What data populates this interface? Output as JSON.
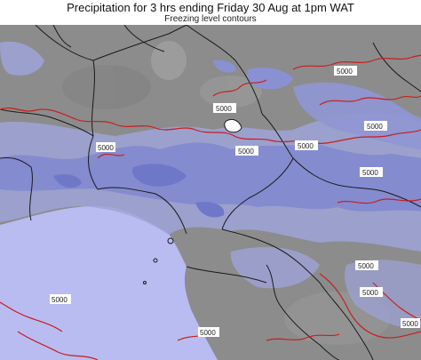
{
  "header": {
    "title": "Precipitation for 3 hrs ending Friday 30 Aug at 1pm WAT",
    "subtitle": "Freezing level contours"
  },
  "colors": {
    "land": "#8a8a8a",
    "ocean": "#b9bcf1",
    "precip_light": "#9ea3d8",
    "precip_heavy": "#6f78c8",
    "contour": "#c81e1e",
    "border": "#1a1a1a"
  },
  "contour_labels": [
    "5000",
    "5000",
    "5000",
    "5000",
    "5000",
    "5000",
    "5000",
    "5000",
    "5000",
    "5000",
    "5000",
    "5000"
  ]
}
